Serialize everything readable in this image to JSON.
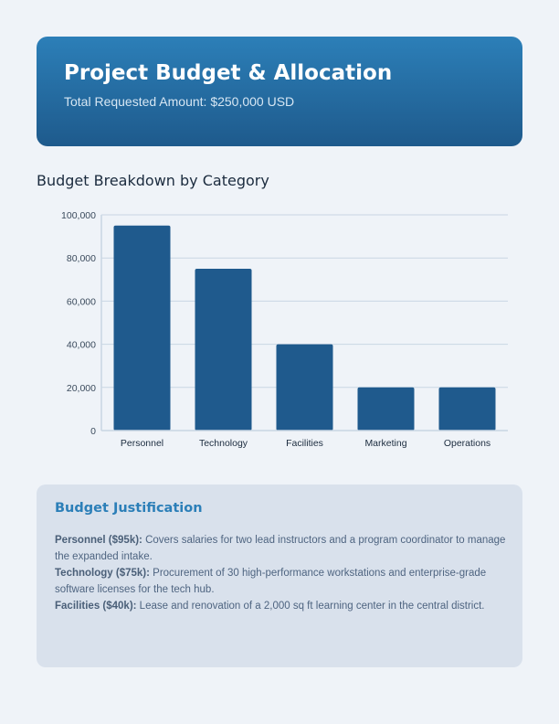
{
  "header": {
    "title": "Project Budget & Allocation",
    "subtitle": "Total Requested Amount: $250,000 USD"
  },
  "section_title": "Budget Breakdown by Category",
  "chart_data": {
    "type": "bar",
    "categories": [
      "Personnel",
      "Technology",
      "Facilities",
      "Marketing",
      "Operations"
    ],
    "values": [
      95000,
      75000,
      40000,
      20000,
      20000
    ],
    "ylim": [
      0,
      100000
    ],
    "yticks": [
      0,
      20000,
      40000,
      60000,
      80000,
      100000
    ],
    "ytick_labels": [
      "0",
      "20,000",
      "40,000",
      "60,000",
      "80,000",
      "100,000"
    ],
    "grid": true,
    "bar_color": "#1f5a8d"
  },
  "justification": {
    "title": "Budget Justification",
    "items": [
      {
        "label": "Personnel ($95k):",
        "text": " Covers salaries for two lead instructors and a program coordinator to manage the expanded intake."
      },
      {
        "label": "Technology ($75k):",
        "text": " Procurement of 30 high-performance workstations and enterprise-grade software licenses for the tech hub."
      },
      {
        "label": "Facilities ($40k):",
        "text": " Lease and renovation of a 2,000 sq ft learning center in the central district."
      }
    ]
  }
}
